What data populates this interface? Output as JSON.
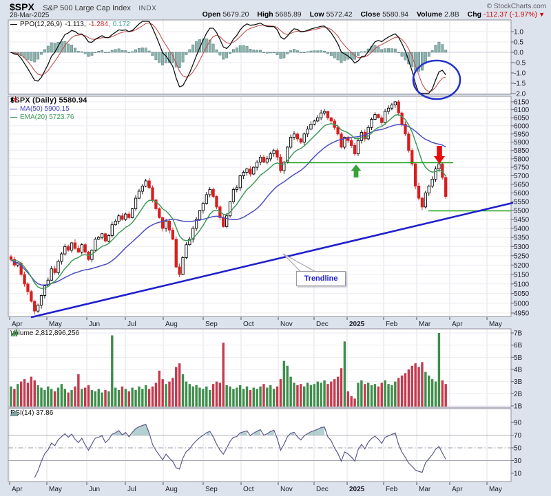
{
  "header": {
    "symbol": "$SPX",
    "name": "S&P 500 Large Cap Index",
    "exchange": "INDX",
    "date": "28-Mar-2025",
    "credit": "© StockCharts.com",
    "quote": {
      "open_label": "Open",
      "open": "5679.20",
      "high_label": "High",
      "high": "5685.89",
      "low_label": "Low",
      "low": "5572.42",
      "close_label": "Close",
      "close": "5580.94",
      "volume_label": "Volume",
      "volume": "2.8B",
      "chg_label": "Chg",
      "chg": "-112.37 (-1.97%)",
      "chg_arrow": "▼"
    }
  },
  "ppo_panel": {
    "label": "PPO(12,26,9)",
    "value_line": "-1.113,",
    "value_signal": "-1.284,",
    "value_hist": "0.172",
    "axis": [
      "1.0",
      "0.5",
      "0.0",
      "-0.5",
      "-1.0",
      "-1.5",
      "-2.0"
    ]
  },
  "price_panel": {
    "legend_main": "$SPX (Daily) 5580.94",
    "legend_ma": "MA(50) 5900.15",
    "legend_ema": "EMA(20) 5723.76",
    "annotation_label": "Trendline",
    "axis": [
      "6150",
      "6100",
      "6050",
      "6000",
      "5950",
      "5900",
      "5850",
      "5800",
      "5750",
      "5700",
      "5650",
      "5600",
      "5550",
      "5500",
      "5450",
      "5400",
      "5350",
      "5300",
      "5250",
      "5200",
      "5150",
      "5100",
      "5050",
      "5000",
      "4950"
    ]
  },
  "volume_panel": {
    "legend": "Volume 2,812,896,256",
    "axis": [
      "7B",
      "6B",
      "5B",
      "4B",
      "3B",
      "2B",
      "1B"
    ]
  },
  "rsi_panel": {
    "legend": "RSI(14) 37.86",
    "axis": [
      "90",
      "70",
      "50",
      "30",
      "10"
    ]
  },
  "x_axis": {
    "months": [
      "Apr",
      "May",
      "Jun",
      "Jul",
      "Aug",
      "Sep",
      "Oct",
      "Nov",
      "Dec",
      "2025",
      "Feb",
      "Mar",
      "Apr",
      "May"
    ],
    "bold_label": "2025"
  },
  "colors": {
    "background": "#dde3ed",
    "panel_bg": "#ffffff",
    "grid_v": "#e2e2ec",
    "grid_h": "#ebebf3",
    "candle_up_stroke": "#000000",
    "candle_down": "#d91e1e",
    "ma50": "#4d4dc3",
    "ema20": "#3f9b57",
    "ppo_line": "#111111",
    "ppo_signal": "#c0504d",
    "ppo_hist_fill": "#8fb2ae",
    "ppo_hist_stroke": "#4a7a74",
    "vol_up": "#3e8e4a",
    "vol_down": "#c43a4e",
    "rsi_line": "#5a5a8c",
    "rsi_fill": "rgba(90,150,150,0.45)",
    "trendline_blue": "#2020cc",
    "annotation_blue": "#2433c8",
    "annotation_green": "#1fa11f",
    "arrow_green": "#3aa23a",
    "arrow_red": "#e80c0c",
    "chg_red": "#cc0000",
    "legend_value_red": "#cc2222",
    "legend_value_green": "#2fa093"
  },
  "chart_data": {
    "type": "candlestick+indicators",
    "symbol": "$SPX",
    "timeframe": "daily, Apr 2024 - Mar 2025 (sampled ~130 bars)",
    "price_axis_range": [
      4950,
      6150
    ],
    "price_scale": "log",
    "ppo_axis_range": [
      -2.0,
      1.0
    ],
    "volume_axis_range_billions": [
      1,
      7
    ],
    "rsi_axis_ticks": [
      90,
      70,
      50,
      30,
      10
    ],
    "last_values": {
      "close": 5580.94,
      "ma50": 5900.15,
      "ema20": 5723.76,
      "ppo": -1.113,
      "ppo_signal": -1.284,
      "ppo_hist": 0.172,
      "rsi14": 37.86,
      "volume": 2812896256
    },
    "closes": [
      5230,
      5200,
      5210,
      5150,
      5100,
      5060,
      5010,
      4960,
      4990,
      5040,
      5090,
      5120,
      5180,
      5160,
      5220,
      5260,
      5300,
      5280,
      5320,
      5290,
      5270,
      5310,
      5270,
      5230,
      5280,
      5340,
      5350,
      5370,
      5330,
      5360,
      5420,
      5440,
      5470,
      5450,
      5480,
      5460,
      5510,
      5570,
      5610,
      5640,
      5670,
      5630,
      5560,
      5510,
      5460,
      5400,
      5440,
      5390,
      5340,
      5190,
      5150,
      5240,
      5310,
      5340,
      5400,
      5450,
      5500,
      5540,
      5590,
      5620,
      5580,
      5520,
      5460,
      5410,
      5470,
      5550,
      5620,
      5630,
      5700,
      5720,
      5740,
      5710,
      5750,
      5780,
      5810,
      5780,
      5800,
      5830,
      5850,
      5810,
      5730,
      5780,
      5870,
      5930,
      5950,
      5920,
      5900,
      5950,
      5980,
      6010,
      6030,
      6050,
      6080,
      6090,
      6050,
      6030,
      5990,
      5950,
      5870,
      5930,
      5910,
      5880,
      5830,
      5910,
      5960,
      5920,
      5990,
      6040,
      6070,
      6050,
      6020,
      6090,
      6110,
      6130,
      6150,
      6080,
      6010,
      5950,
      5850,
      5770,
      5640,
      5570,
      5520,
      5600,
      5640,
      5680,
      5740,
      5770,
      5690,
      5580
    ],
    "volumes_billions": [
      2.6,
      2.4,
      2.8,
      3.0,
      3.2,
      2.9,
      3.4,
      3.1,
      2.7,
      2.5,
      2.3,
      2.6,
      2.4,
      2.2,
      2.5,
      2.8,
      2.4,
      2.1,
      2.3,
      2.6,
      3.6,
      2.4,
      2.5,
      2.7,
      2.3,
      2.2,
      2.4,
      2.1,
      2.3,
      2.2,
      6.8,
      2.5,
      2.3,
      2.6,
      2.4,
      2.2,
      2.5,
      2.3,
      2.6,
      2.4,
      2.7,
      2.4,
      2.6,
      2.9,
      3.9,
      3.2,
      2.8,
      3.0,
      3.3,
      4.2,
      4.5,
      3.6,
      3.0,
      2.8,
      2.6,
      2.7,
      2.5,
      2.4,
      2.6,
      2.3,
      2.8,
      3.0,
      2.9,
      6.2,
      2.7,
      2.6,
      2.4,
      2.5,
      2.7,
      2.4,
      2.6,
      2.3,
      2.5,
      2.4,
      2.6,
      2.8,
      2.5,
      2.7,
      2.4,
      2.6,
      3.2,
      4.7,
      4.3,
      3.4,
      2.9,
      2.7,
      2.8,
      2.6,
      2.9,
      2.7,
      2.8,
      3.0,
      2.9,
      3.1,
      2.8,
      3.0,
      3.2,
      3.4,
      4.1,
      6.3,
      2.2,
      1.8,
      1.6,
      2.9,
      3.1,
      2.8,
      2.9,
      2.7,
      2.8,
      2.6,
      2.9,
      3.1,
      2.8,
      2.7,
      3.0,
      3.3,
      3.5,
      3.7,
      4.0,
      4.3,
      4.5,
      4.2,
      4.6,
      3.8,
      3.5,
      3.2,
      3.0,
      7.0,
      3.1,
      2.8
    ],
    "annotations": {
      "trendline": "rising blue trendline from the Apr 2024 low to the right edge (~5560)",
      "resistance_line_price": 5790,
      "support_line_price": 5540,
      "green_up_arrow": "at ~5780 level, Jan 2025",
      "red_down_arrow": "above ~5780 level, late Mar 2025",
      "blue_ellipse": "circles the PPO upturn hook at far right"
    }
  }
}
